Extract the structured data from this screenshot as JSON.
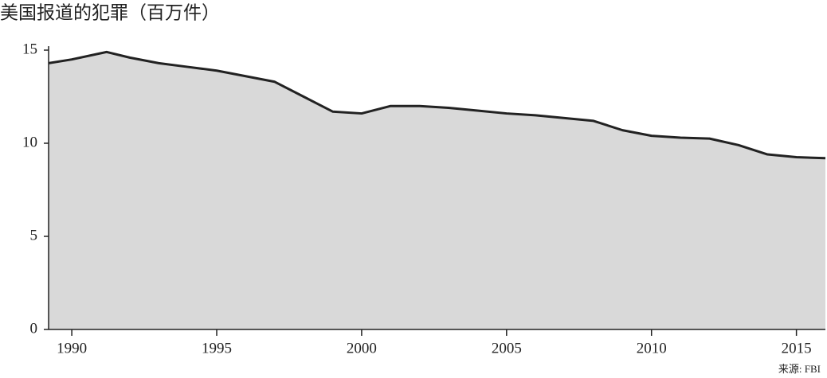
{
  "chart_data": {
    "type": "area",
    "title": "美国报道的犯罪（百万件）",
    "source": "来源: FBI",
    "x": [
      1989.2,
      1990,
      1991.2,
      1992,
      1993,
      1994,
      1995,
      1996,
      1997,
      1998,
      1999,
      2000,
      2001,
      2002,
      2003,
      2004,
      2005,
      2006,
      2007,
      2008,
      2009,
      2010,
      2011,
      2012,
      2013,
      2014,
      2015,
      2016
    ],
    "values": [
      14.3,
      14.5,
      14.9,
      14.6,
      14.3,
      14.1,
      13.9,
      13.6,
      13.3,
      12.5,
      11.7,
      11.6,
      12.0,
      12.0,
      11.9,
      11.75,
      11.6,
      11.5,
      11.35,
      11.2,
      10.7,
      10.4,
      10.3,
      10.25,
      9.9,
      9.4,
      9.25,
      9.2
    ],
    "color": "#d9d9d9",
    "line_color": "#222222",
    "xlim": [
      1989.2,
      2016
    ],
    "xticks": [
      1990,
      1995,
      2000,
      2005,
      2010,
      2015
    ],
    "ylim": [
      0,
      15
    ],
    "yticks": [
      0,
      5,
      10,
      15
    ]
  }
}
